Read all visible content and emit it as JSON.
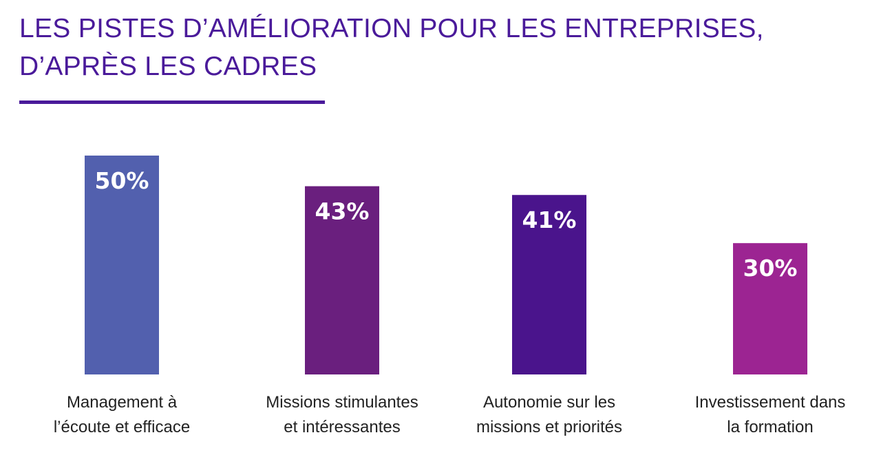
{
  "title_lines": [
    "LES PISTES D’AMÉLIORATION POUR LES ENTREPRISES,",
    "D’APRÈS LES CADRES"
  ],
  "chart_data": {
    "type": "bar",
    "title": "LES PISTES D’AMÉLIORATION POUR LES ENTREPRISES, D’APRÈS LES CADRES",
    "categories": [
      [
        "Management à",
        "l’écoute et efficace"
      ],
      [
        "Missions stimulantes",
        "et intéressantes"
      ],
      [
        "Autonomie sur les",
        "missions et priorités"
      ],
      [
        "Investissement dans",
        "la formation"
      ]
    ],
    "values": [
      50,
      43,
      41,
      30
    ],
    "value_labels": [
      "50%",
      "43%",
      "41%",
      "30%"
    ],
    "unit": "%",
    "ylim": [
      0,
      50
    ],
    "grid": false,
    "legend": "none",
    "colors": [
      "#5260ae",
      "#6a1f7e",
      "#4a148c",
      "#9c2492"
    ]
  }
}
